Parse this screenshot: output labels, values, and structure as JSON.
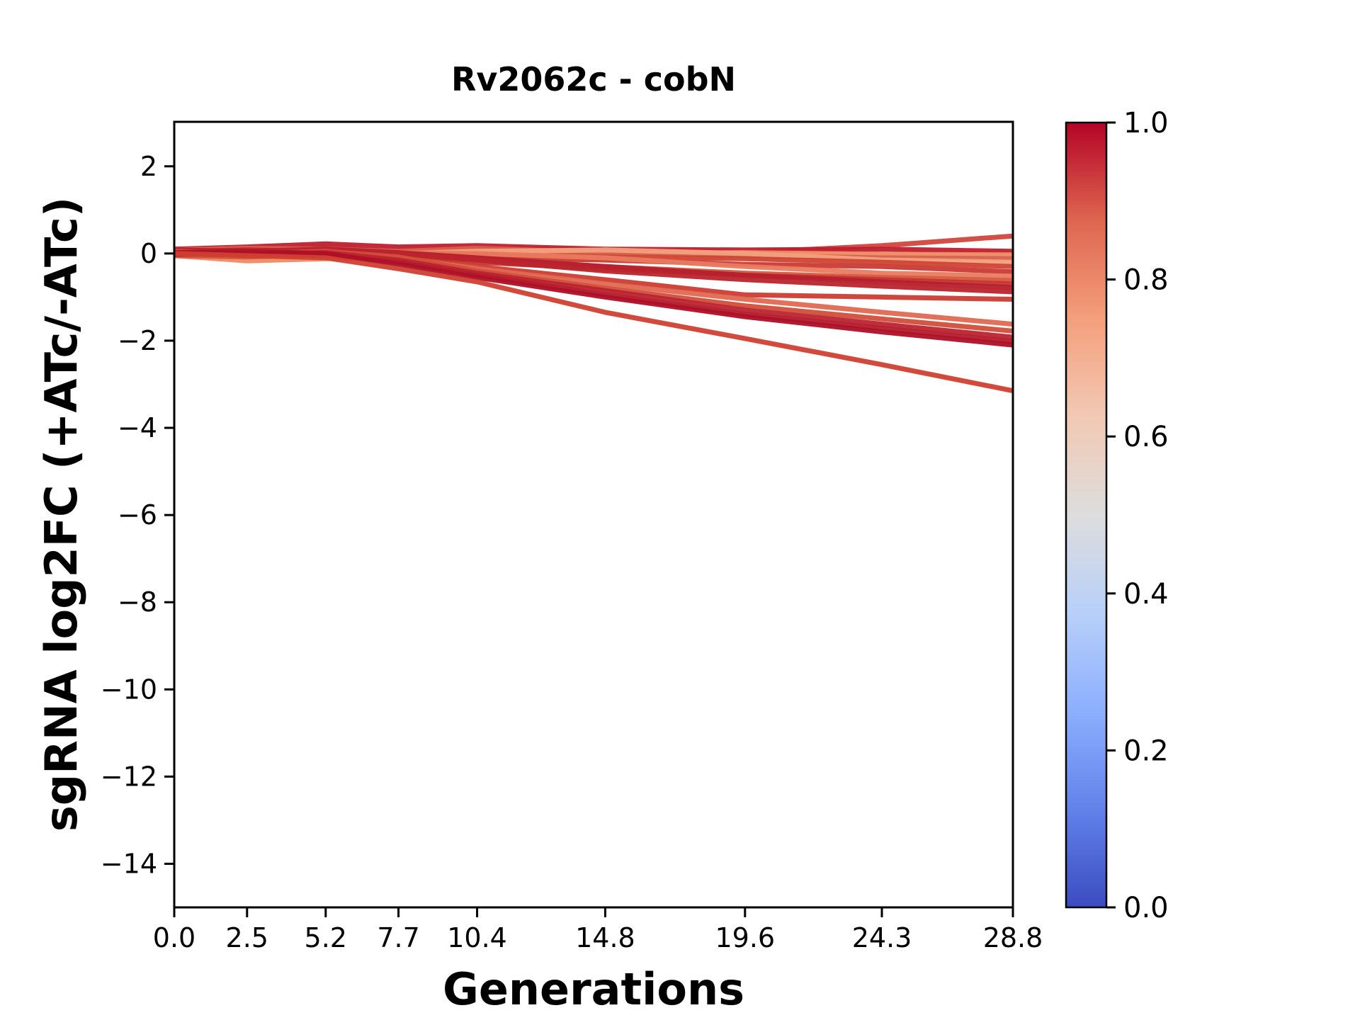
{
  "chart_data": {
    "type": "line",
    "title": "Rv2062c - cobN",
    "xlabel": "Generations",
    "ylabel": "sgRNA log2FC (+ATc/-ATc)",
    "xlim": [
      0,
      28.8
    ],
    "ylim": [
      -15.0,
      3.02
    ],
    "grid": false,
    "x": [
      0.0,
      2.5,
      5.2,
      7.7,
      10.4,
      14.8,
      19.6,
      24.3,
      28.8
    ],
    "xticks": [
      {
        "value": 0.0,
        "label": "0.0"
      },
      {
        "value": 2.5,
        "label": "2.5"
      },
      {
        "value": 5.2,
        "label": "5.2"
      },
      {
        "value": 7.7,
        "label": "7.7"
      },
      {
        "value": 10.4,
        "label": "10.4"
      },
      {
        "value": 14.8,
        "label": "14.8"
      },
      {
        "value": 19.6,
        "label": "19.6"
      },
      {
        "value": 24.3,
        "label": "24.3"
      },
      {
        "value": 28.8,
        "label": "28.8"
      }
    ],
    "yticks": [
      {
        "value": 2,
        "label": "2"
      },
      {
        "value": 0,
        "label": "0"
      },
      {
        "value": -2,
        "label": "−2"
      },
      {
        "value": -4,
        "label": "−4"
      },
      {
        "value": -6,
        "label": "−6"
      },
      {
        "value": -8,
        "label": "−8"
      },
      {
        "value": -10,
        "label": "−10"
      },
      {
        "value": -12,
        "label": "−12"
      },
      {
        "value": -14,
        "label": "−14"
      }
    ],
    "series": [
      {
        "color": "#d0473d",
        "values": [
          0.02,
          0.08,
          0.12,
          0.05,
          0.1,
          0.08,
          0.02,
          0.18,
          0.4
        ]
      },
      {
        "color": "#bf1f2e",
        "values": [
          0.1,
          0.15,
          0.22,
          0.15,
          0.18,
          0.1,
          0.08,
          0.1,
          0.05
        ]
      },
      {
        "color": "#ee8a62",
        "values": [
          -0.05,
          -0.17,
          -0.12,
          -0.08,
          -0.05,
          0.0,
          0.02,
          -0.02,
          -0.03
        ]
      },
      {
        "color": "#d6604d",
        "values": [
          0.08,
          0.12,
          0.1,
          0.05,
          0.12,
          0.02,
          -0.05,
          -0.1,
          -0.12
        ]
      },
      {
        "color": "#f2a17f",
        "values": [
          0.0,
          0.05,
          0.02,
          0.0,
          0.05,
          0.08,
          0.0,
          -0.15,
          -0.2
        ]
      },
      {
        "color": "#cf4434",
        "values": [
          0.02,
          0.0,
          0.05,
          0.0,
          -0.02,
          -0.08,
          -0.12,
          -0.2,
          -0.3
        ]
      },
      {
        "color": "#c93a33",
        "values": [
          -0.02,
          0.02,
          0.0,
          -0.05,
          -0.1,
          -0.15,
          -0.25,
          -0.3,
          -0.42
        ]
      },
      {
        "color": "#e97b5f",
        "values": [
          0.05,
          0.02,
          0.08,
          0.02,
          0.0,
          -0.1,
          -0.3,
          -0.45,
          -0.52
        ]
      },
      {
        "color": "#d5573f",
        "values": [
          -0.05,
          -0.08,
          -0.02,
          -0.08,
          -0.15,
          -0.3,
          -0.45,
          -0.55,
          -0.62
        ]
      },
      {
        "color": "#c63630",
        "values": [
          0.0,
          -0.05,
          0.02,
          -0.02,
          -0.2,
          -0.35,
          -0.5,
          -0.6,
          -0.7
        ]
      },
      {
        "color": "#b61f2e",
        "values": [
          0.08,
          0.05,
          0.1,
          0.02,
          -0.1,
          -0.3,
          -0.5,
          -0.65,
          -0.78
        ]
      },
      {
        "color": "#bb252c",
        "values": [
          0.05,
          0.08,
          0.05,
          0.0,
          -0.15,
          -0.4,
          -0.6,
          -0.75,
          -0.88
        ]
      },
      {
        "color": "#cc3d31",
        "values": [
          0.0,
          0.02,
          -0.02,
          -0.1,
          -0.3,
          -0.6,
          -0.95,
          -1.0,
          -1.05
        ]
      },
      {
        "color": "#e06852",
        "values": [
          0.02,
          0.05,
          0.0,
          -0.1,
          -0.35,
          -0.7,
          -1.05,
          -1.35,
          -1.62
        ]
      },
      {
        "color": "#d14e3b",
        "values": [
          0.05,
          0.0,
          0.05,
          -0.08,
          -0.4,
          -0.8,
          -1.2,
          -1.5,
          -1.78
        ]
      },
      {
        "color": "#bc2430",
        "values": [
          0.0,
          -0.02,
          0.02,
          -0.15,
          -0.45,
          -0.85,
          -1.3,
          -1.62,
          -1.92
        ]
      },
      {
        "color": "#b41b2c",
        "values": [
          -0.02,
          0.0,
          -0.05,
          -0.2,
          -0.5,
          -0.95,
          -1.4,
          -1.72,
          -2.02
        ]
      },
      {
        "color": "#ad1027",
        "values": [
          0.02,
          0.05,
          0.0,
          -0.25,
          -0.55,
          -1.0,
          -1.45,
          -1.8,
          -2.1
        ]
      },
      {
        "color": "#cf4032",
        "values": [
          0.0,
          -0.05,
          -0.1,
          -0.35,
          -0.65,
          -1.35,
          -1.95,
          -2.55,
          -3.15
        ]
      }
    ],
    "colorbar": {
      "min": 0.0,
      "max": 1.0,
      "ticks": [
        {
          "value": 1.0,
          "label": "1.0"
        },
        {
          "value": 0.8,
          "label": "0.8"
        },
        {
          "value": 0.6,
          "label": "0.6"
        },
        {
          "value": 0.4,
          "label": "0.4"
        },
        {
          "value": 0.2,
          "label": "0.2"
        },
        {
          "value": 0.0,
          "label": "0.0"
        }
      ],
      "gradient_stops": [
        {
          "pos": 0.0,
          "color": "#3b4cc0"
        },
        {
          "pos": 0.125,
          "color": "#6282ea"
        },
        {
          "pos": 0.25,
          "color": "#8caffe"
        },
        {
          "pos": 0.375,
          "color": "#b8d0f9"
        },
        {
          "pos": 0.5,
          "color": "#dddddd"
        },
        {
          "pos": 0.625,
          "color": "#f2c9b4"
        },
        {
          "pos": 0.75,
          "color": "#f49f7b"
        },
        {
          "pos": 0.875,
          "color": "#de6650"
        },
        {
          "pos": 1.0,
          "color": "#b40426"
        }
      ]
    },
    "style": {
      "axis_color": "#000000",
      "background": "#ffffff",
      "line_width": 7
    }
  }
}
